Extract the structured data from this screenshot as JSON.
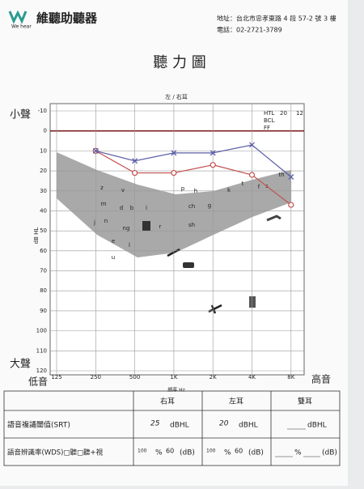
{
  "header": {
    "brand_en": "We hear",
    "brand": "維聽助聽器",
    "address": "地址：台北市忠孝東路 4 段 57-2 號 3 樓",
    "phone": "電話：02-2721-3789",
    "title": "聽 力 圖"
  },
  "chart_data": {
    "type": "line",
    "title": "左 / 右耳",
    "xlabel": "頻率 Hz",
    "ylabel": "dB HL",
    "categories": [
      "125",
      "250",
      "500",
      "1K",
      "2K",
      "4K",
      "8K"
    ],
    "series": [
      {
        "color": "#c0504d",
        "marker": "circle",
        "values": [
          null,
          10,
          21,
          21,
          17,
          22,
          37
        ]
      },
      {
        "color": "#5b5fa8",
        "marker": "cross",
        "values": [
          null,
          10,
          15,
          11,
          11,
          7,
          23
        ]
      }
    ],
    "ylim": [
      -10,
      120
    ],
    "yticks": [
      -10,
      0,
      10,
      20,
      30,
      40,
      50,
      60,
      70,
      80,
      90,
      100,
      110,
      120
    ],
    "grid": true,
    "annotations": {
      "soft": "小聲",
      "loud": "大聲",
      "low": "低音",
      "high": "高音"
    },
    "legend_text": [
      "HTL",
      "20",
      "12",
      "BCL",
      "FF"
    ],
    "speech_sounds": [
      "z",
      "v",
      "p",
      "h",
      "k",
      "t",
      "f",
      "s",
      "th",
      "m",
      "d",
      "b",
      "i",
      "ch",
      "g",
      "j",
      "n",
      "ng",
      "r",
      "sh",
      "e",
      "l",
      "u"
    ]
  },
  "table": {
    "headers": [
      "右耳",
      "左耳",
      "雙耳"
    ],
    "srt": {
      "label": "語音複誦閾值(SRT)",
      "unit": "dBHL",
      "values": [
        "25",
        "20"
      ]
    },
    "wds": {
      "label": "語音辨識率(WDS)□聽□聽+視",
      "percent": "%",
      "db": "(dB)",
      "values": [
        [
          "100",
          "60"
        ],
        [
          "100",
          "60"
        ]
      ]
    }
  }
}
